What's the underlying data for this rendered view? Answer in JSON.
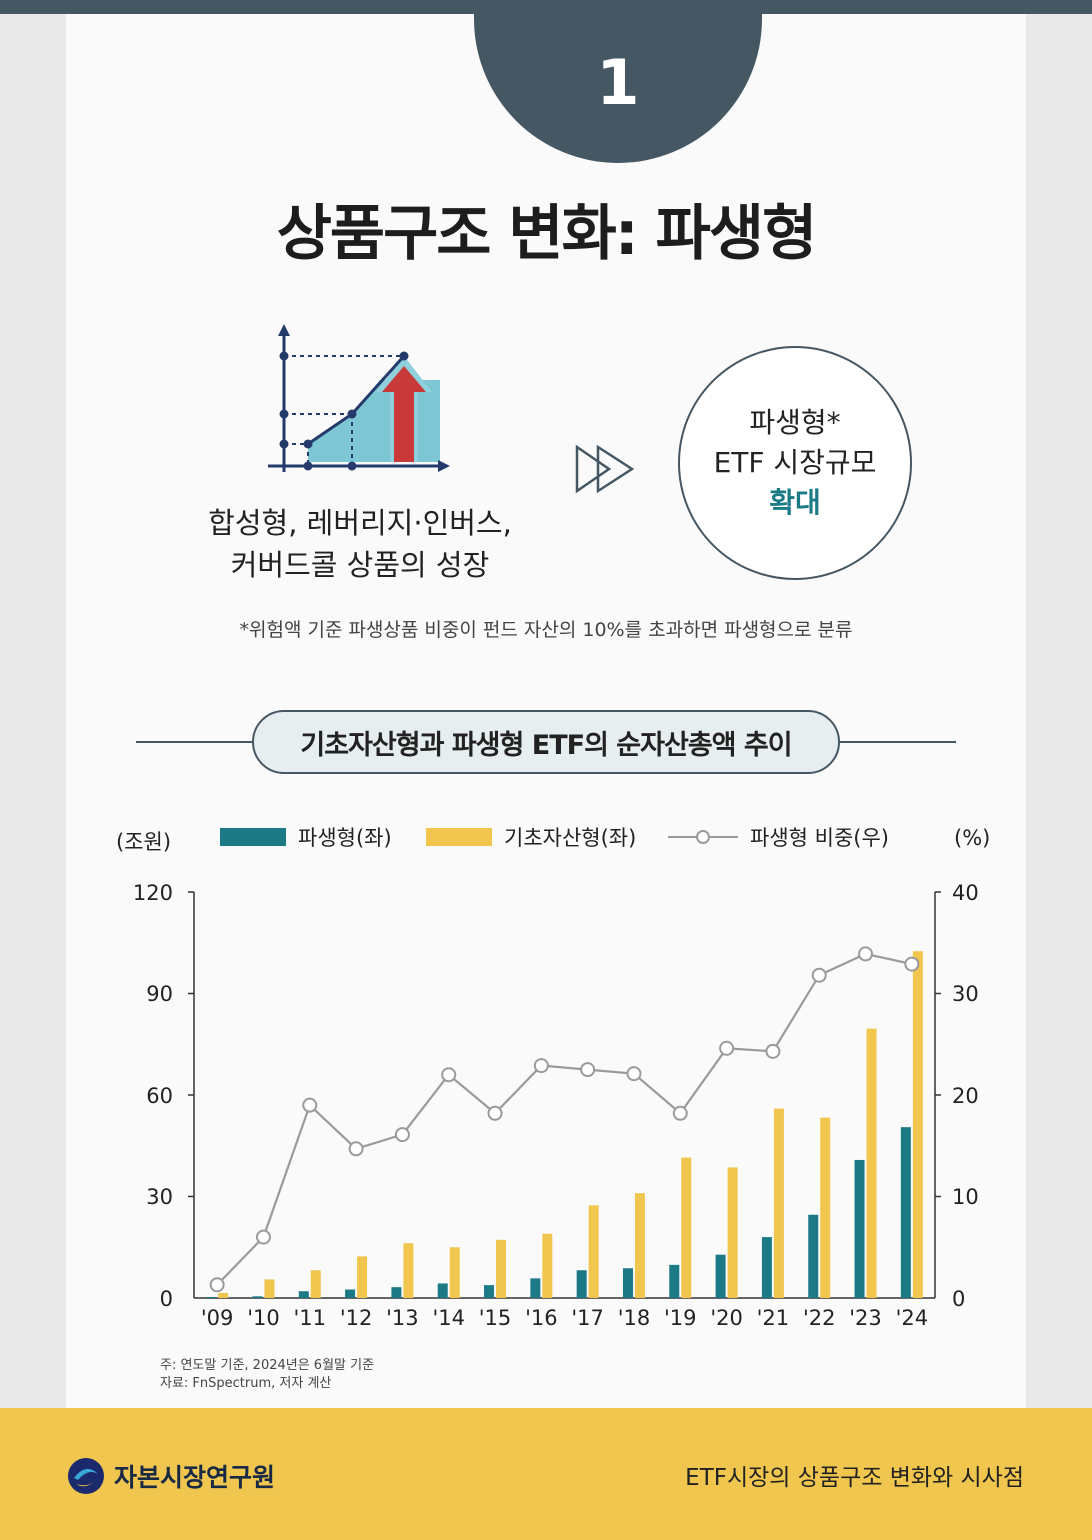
{
  "badge_number": "1",
  "title": "상품구조 변화: 파생형",
  "growth_text": [
    "합성형, 레버리지·인버스,",
    "커버드콜 상품의 성장"
  ],
  "circle": {
    "line1": "파생형*",
    "line2": "ETF 시장규모",
    "line3": "확대"
  },
  "footnote": "*위험액 기준 파생상품 비중이 펀드 자산의 10%를 초과하면 파생형으로 분류",
  "chart_title": "기초자산형과 파생형 ETF의 순자산총액 추이",
  "colors": {
    "derivative": "#1b7a86",
    "underlying": "#f0c64e",
    "ratio": "#9a9a9a",
    "dark": "#465764"
  },
  "chart_data": {
    "type": "bar+line",
    "unit_left": "(조원)",
    "unit_right": "(%)",
    "categories": [
      "'09",
      "'10",
      "'11",
      "'12",
      "'13",
      "'14",
      "'15",
      "'16",
      "'17",
      "'18",
      "'19",
      "'20",
      "'21",
      "'22",
      "'23",
      "'24"
    ],
    "series": [
      {
        "name": "파생형(좌)",
        "type": "bar",
        "axis": "left",
        "values": [
          0.3,
          0.5,
          2,
          2.5,
          3.2,
          4.3,
          3.8,
          5.8,
          8.2,
          8.8,
          9.8,
          12.8,
          18,
          24.6,
          40.8,
          50.5
        ]
      },
      {
        "name": "기초자산형(좌)",
        "type": "bar",
        "axis": "left",
        "values": [
          1.5,
          5.5,
          8.2,
          12.3,
          16.2,
          15,
          17.2,
          19,
          27.4,
          31,
          41.5,
          38.6,
          56,
          53.3,
          79.6,
          102.5
        ]
      },
      {
        "name": "파생형 비중(우)",
        "type": "line",
        "axis": "right",
        "values": [
          1.3,
          6,
          19,
          14.7,
          16.1,
          22,
          18.2,
          22.9,
          22.5,
          22.1,
          18.2,
          24.6,
          24.3,
          31.8,
          33.9,
          32.9
        ]
      }
    ],
    "ylim_left": [
      0,
      120
    ],
    "yticks_left": [
      "120",
      "90",
      "60",
      "30",
      "0"
    ],
    "ylim_right": [
      0,
      40
    ],
    "yticks_right": [
      "40",
      "30",
      "20",
      "10",
      "0"
    ],
    "notes": [
      "주: 연도말 기준, 2024년은 6월말 기준",
      "자료: FnSpectrum, 저자 계산"
    ]
  },
  "footer": {
    "org": "자본시장연구원",
    "report": "ETF시장의 상품구조 변화와 시사점"
  }
}
